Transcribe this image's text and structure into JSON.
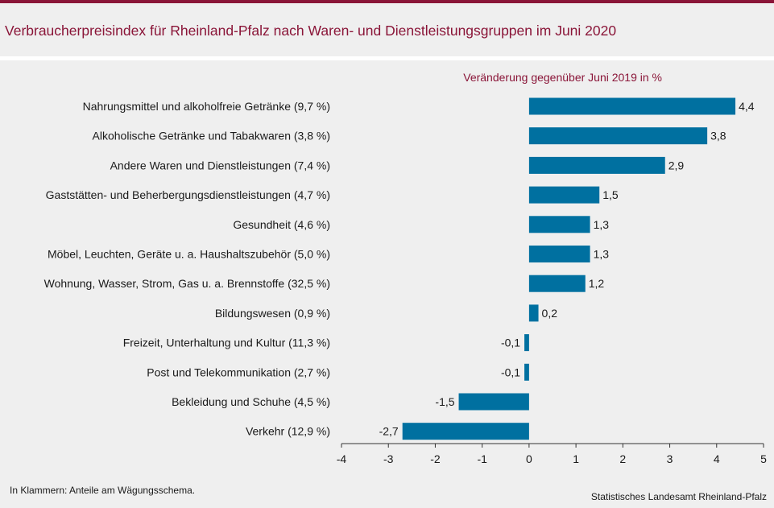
{
  "title": "Verbraucherpreisindex für Rheinland-Pfalz nach Waren- und Dienstleistungsgruppen im Juni 2020",
  "footnote": "In Klammern: Anteile am Wägungsschema.",
  "source": "Statistisches Landesamt Rheinland-Pfalz",
  "colors": {
    "bar": "#0070a0",
    "accent": "#8a1538"
  },
  "chart_data": {
    "type": "bar",
    "orientation": "horizontal",
    "subtitle": "Veränderung gegenüber Juni 2019 in %",
    "categories": [
      "Nahrungsmittel und alkoholfreie Getränke (9,7 %)",
      "Alkoholische Getränke und Tabakwaren (3,8 %)",
      "Andere Waren und Dienstleistungen (7,4 %)",
      "Gaststätten- und Beherbergungsdienstleistungen (4,7 %)",
      "Gesundheit (4,6 %)",
      "Möbel, Leuchten, Geräte u. a. Haushaltszubehör  (5,0 %)",
      "Wohnung, Wasser, Strom, Gas u. a. Brennstoffe (32,5 %)",
      "Bildungswesen (0,9 %)",
      "Freizeit, Unterhaltung und Kultur (11,3 %)",
      "Post und Telekommunikation (2,7 %)",
      "Bekleidung und Schuhe (4,5 %)",
      "Verkehr (12,9 %)"
    ],
    "values": [
      4.4,
      3.8,
      2.9,
      1.5,
      1.3,
      1.3,
      1.2,
      0.2,
      -0.1,
      -0.1,
      -1.5,
      -2.7
    ],
    "value_labels": [
      "4,4",
      "3,8",
      "2,9",
      "1,5",
      "1,3",
      "1,3",
      "1,2",
      "0,2",
      "-0,1",
      "-0,1",
      "-1,5",
      "-2,7"
    ],
    "xlim": [
      -4,
      5
    ],
    "xticks": [
      "-4",
      "-3",
      "-2",
      "-1",
      "0",
      "1",
      "2",
      "3",
      "4",
      "5"
    ],
    "grid": false,
    "legend": "none"
  }
}
